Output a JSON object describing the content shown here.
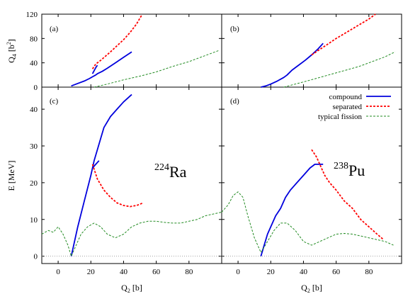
{
  "chart_data": [
    {
      "panel": "(a)",
      "type": "line",
      "ylabel": "Q4 [b2]",
      "xlim": [
        -10,
        100
      ],
      "ylim": [
        0,
        120
      ],
      "y_ticks": [
        0,
        40,
        80,
        120
      ],
      "x_ticks": [
        0,
        20,
        40,
        60,
        80
      ],
      "series": [
        {
          "name": "compound",
          "color": "#0000dd",
          "style": "solid",
          "x": [
            8,
            12,
            16,
            19,
            21,
            23,
            24,
            27,
            30,
            35,
            40,
            45
          ],
          "y": [
            2,
            6,
            10,
            14,
            17,
            20,
            22,
            26,
            31,
            40,
            49,
            58
          ]
        },
        {
          "name": "compound",
          "color": "#0000dd",
          "style": "solid",
          "x": [
            21,
            22,
            23,
            24
          ],
          "y": [
            22,
            27,
            32,
            36
          ]
        },
        {
          "name": "separated",
          "color": "#ff0000",
          "style": "dashed",
          "x": [
            21,
            23,
            26,
            29,
            32,
            36,
            40,
            44,
            48,
            51
          ],
          "y": [
            30,
            38,
            44,
            51,
            58,
            68,
            78,
            90,
            104,
            118
          ]
        },
        {
          "name": "typical fission",
          "color": "#228b22",
          "style": "dotted",
          "x": [
            22,
            30,
            40,
            50,
            60,
            70,
            80,
            90,
            98
          ],
          "y": [
            0,
            5,
            12,
            18,
            25,
            34,
            42,
            52,
            60
          ]
        }
      ]
    },
    {
      "panel": "(b)",
      "type": "line",
      "xlim": [
        -10,
        100
      ],
      "ylim": [
        0,
        120
      ],
      "series": [
        {
          "name": "compound",
          "color": "#0000dd",
          "style": "solid",
          "x": [
            14,
            17,
            20,
            24,
            28,
            30,
            33,
            37,
            41,
            45,
            49,
            52
          ],
          "y": [
            0,
            2,
            5,
            10,
            16,
            20,
            28,
            36,
            44,
            53,
            63,
            72
          ]
        },
        {
          "name": "separated",
          "color": "#ff0000",
          "style": "dashed",
          "x": [
            45,
            50,
            55,
            60,
            65,
            70,
            75,
            80,
            84
          ],
          "y": [
            53,
            62,
            71,
            80,
            88,
            96,
            104,
            112,
            120
          ]
        },
        {
          "name": "typical fission",
          "color": "#228b22",
          "style": "dotted",
          "x": [
            28,
            35,
            42,
            50,
            58,
            66,
            74,
            82,
            90,
            96
          ],
          "y": [
            0,
            5,
            10,
            16,
            22,
            28,
            34,
            42,
            50,
            58
          ]
        }
      ]
    },
    {
      "panel": "(c)",
      "type": "line",
      "ylabel": "E [MeV]",
      "xlabel": "Q2 [b]",
      "xlim": [
        -10,
        100
      ],
      "ylim": [
        -2,
        46
      ],
      "y_ticks": [
        0,
        10,
        20,
        30,
        40
      ],
      "x_ticks": [
        0,
        20,
        40,
        60,
        80
      ],
      "series": [
        {
          "name": "compound",
          "color": "#0000dd",
          "style": "solid",
          "x": [
            8,
            9,
            12,
            16,
            20,
            22,
            24,
            26,
            28,
            32,
            36,
            40,
            45
          ],
          "y": [
            0,
            2,
            8,
            15,
            22,
            26,
            29,
            32,
            35,
            38,
            40,
            42,
            44
          ]
        },
        {
          "name": "compound",
          "color": "#0000dd",
          "style": "solid",
          "x": [
            21,
            23,
            25
          ],
          "y": [
            24,
            25,
            26
          ]
        },
        {
          "name": "separated",
          "color": "#ff0000",
          "style": "dashed",
          "x": [
            21,
            24,
            28,
            32,
            36,
            40,
            44,
            48,
            52
          ],
          "y": [
            25,
            21,
            18,
            16,
            14.5,
            13.8,
            13.5,
            13.8,
            14.5
          ]
        },
        {
          "name": "typical fission",
          "color": "#228b22",
          "style": "dotted",
          "x": [
            -10,
            -6,
            -3,
            0,
            3,
            6,
            8,
            10,
            14,
            18,
            22,
            26,
            30,
            35,
            40,
            45,
            50,
            55,
            60,
            65,
            70,
            75,
            80,
            85,
            90,
            95,
            100
          ],
          "y": [
            6,
            7,
            6.5,
            8,
            6,
            3,
            0,
            2,
            6,
            8,
            9,
            8,
            6,
            5,
            6,
            8,
            9,
            9.5,
            9.5,
            9.2,
            9,
            9,
            9.5,
            10,
            11,
            11.5,
            12
          ]
        }
      ]
    },
    {
      "panel": "(d)",
      "type": "line",
      "xlabel": "Q2 [b]",
      "xlim": [
        -10,
        100
      ],
      "ylim": [
        -2,
        46
      ],
      "series": [
        {
          "name": "compound",
          "color": "#0000dd",
          "style": "solid",
          "x": [
            14,
            16,
            18,
            20,
            23,
            26,
            29,
            32,
            36,
            40,
            44,
            47,
            50,
            52
          ],
          "y": [
            0,
            3,
            6,
            8,
            11,
            13,
            16,
            18,
            20,
            22,
            24,
            25,
            25,
            25
          ]
        },
        {
          "name": "separated",
          "color": "#ff0000",
          "style": "dashed",
          "x": [
            45,
            48,
            50,
            53,
            56,
            60,
            65,
            70,
            75,
            80,
            85,
            89
          ],
          "y": [
            29,
            27,
            25,
            22,
            20,
            18,
            15,
            13,
            10,
            8,
            6,
            4.5
          ]
        },
        {
          "name": "typical fission",
          "color": "#228b22",
          "style": "dotted",
          "x": [
            -10,
            -6,
            -3,
            0,
            3,
            6,
            10,
            14,
            18,
            22,
            26,
            30,
            35,
            40,
            45,
            50,
            55,
            60,
            65,
            70,
            75,
            80,
            85,
            90,
            95
          ],
          "y": [
            12,
            14,
            16.5,
            17.5,
            16,
            11,
            5,
            1,
            4,
            7,
            9,
            9,
            7,
            4,
            3,
            4,
            5,
            6,
            6.2,
            6,
            5.5,
            5,
            4.5,
            4,
            3
          ]
        }
      ]
    }
  ],
  "panel_labels": {
    "a": "(a)",
    "b": "(b)",
    "c": "(c)",
    "d": "(d)"
  },
  "axes": {
    "q4_label_main": "Q",
    "q4_label_sub": "4",
    "q4_label_unit_pre": " [b",
    "q4_label_unit_sup": "2",
    "q4_label_unit_post": "]",
    "e_label": "E [MeV]",
    "q2_label_main": "Q",
    "q2_label_sub": "2",
    "q2_label_unit": " [b]",
    "q4_ticks": [
      "0",
      "40",
      "80",
      "120"
    ],
    "e_ticks": [
      "0",
      "10",
      "20",
      "30",
      "40"
    ],
    "x_ticks": [
      "0",
      "20",
      "40",
      "60",
      "80"
    ]
  },
  "legend": {
    "compound": "compound",
    "separated": "separated",
    "typical": "typical fission"
  },
  "nuclei": {
    "ra_mass": "224",
    "ra_symbol": "Ra",
    "pu_mass": "238",
    "pu_symbol": "Pu"
  },
  "colors": {
    "compound": "#0000dd",
    "separated": "#ff0000",
    "typical": "#228b22",
    "zero_line": "#888888"
  }
}
